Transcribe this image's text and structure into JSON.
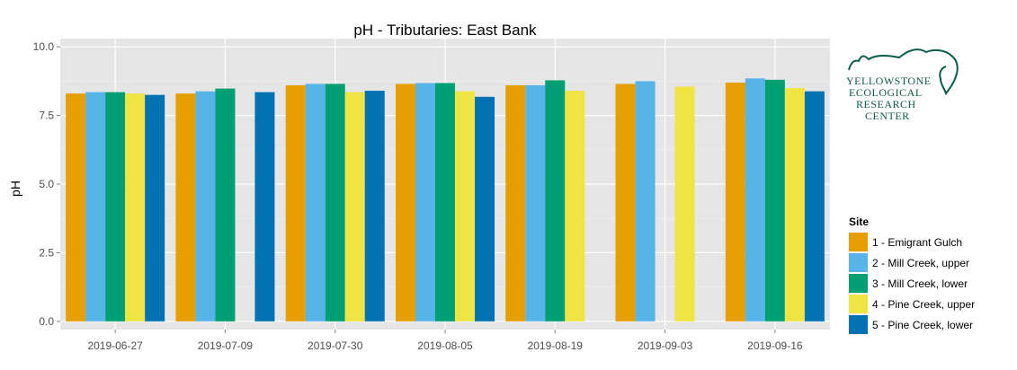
{
  "chart_data": {
    "type": "bar",
    "title": "pH - Tributaries: East Bank",
    "xlabel": "",
    "ylabel": "pH",
    "ylim": [
      -0.3,
      10.3
    ],
    "yticks": [
      0.0,
      2.5,
      5.0,
      7.5,
      10.0
    ],
    "ytick_labels": [
      "0.0",
      "2.5",
      "5.0",
      "7.5",
      "10.0"
    ],
    "grid": true,
    "legend": {
      "title": "Site",
      "placement": "right-bottom"
    },
    "categories": [
      "2019-06-27",
      "2019-07-09",
      "2019-07-30",
      "2019-08-05",
      "2019-08-19",
      "2019-09-03",
      "2019-09-16"
    ],
    "series": [
      {
        "name": "1 - Emigrant Gulch",
        "color": "#E69F00",
        "values": [
          8.3,
          8.3,
          8.6,
          8.65,
          8.6,
          8.65,
          8.7
        ]
      },
      {
        "name": "2 - Mill Creek, upper",
        "color": "#56B4E9",
        "values": [
          8.35,
          8.38,
          8.65,
          8.68,
          8.6,
          8.75,
          8.85
        ]
      },
      {
        "name": "3 - Mill Creek, lower",
        "color": "#009E73",
        "values": [
          8.35,
          8.48,
          8.65,
          8.68,
          8.78,
          null,
          8.8
        ]
      },
      {
        "name": "4 - Pine Creek, upper",
        "color": "#F0E442",
        "values": [
          8.3,
          null,
          8.35,
          8.38,
          8.4,
          8.55,
          8.5
        ]
      },
      {
        "name": "5 - Pine Creek, lower",
        "color": "#0072B2",
        "values": [
          8.25,
          8.35,
          8.4,
          8.18,
          null,
          null,
          8.38
        ]
      }
    ]
  },
  "logo": {
    "lines": [
      "YELLOWSTONE",
      "ECOLOGICAL",
      "RESEARCH",
      "CENTER"
    ],
    "color": "#0e5a4c"
  }
}
